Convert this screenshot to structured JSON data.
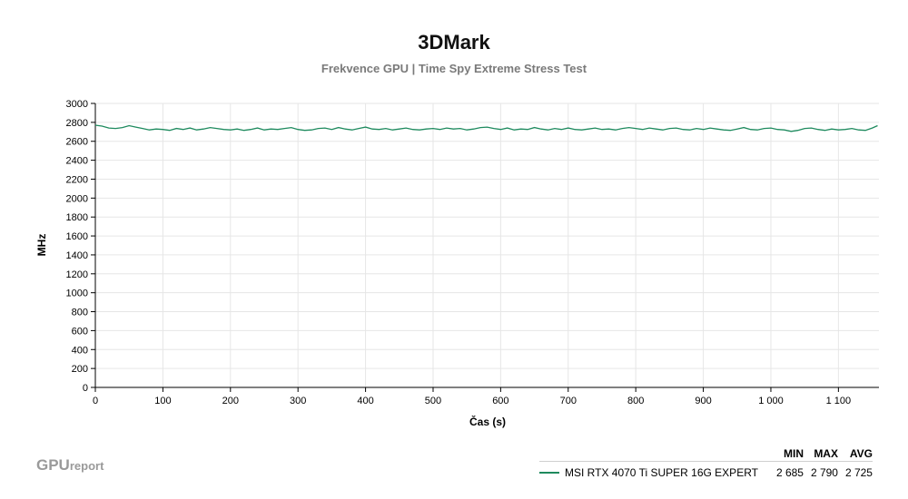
{
  "chart_data": {
    "type": "line",
    "title": "3DMark",
    "subtitle": "Frekvence GPU | Time Spy Extreme Stress Test",
    "xlabel": "Čas (s)",
    "ylabel": "MHz",
    "xlim": [
      0,
      1160
    ],
    "ylim": [
      0,
      3000
    ],
    "x_ticks": [
      0,
      100,
      200,
      300,
      400,
      500,
      600,
      700,
      800,
      900,
      1000,
      1100
    ],
    "x_tick_labels": [
      "0",
      "100",
      "200",
      "300",
      "400",
      "500",
      "600",
      "700",
      "800",
      "900",
      "1 000",
      "1 100"
    ],
    "y_ticks": [
      0,
      200,
      400,
      600,
      800,
      1000,
      1200,
      1400,
      1600,
      1800,
      2000,
      2200,
      2400,
      2600,
      2800,
      3000
    ],
    "grid": true,
    "legend_position": "bottom-right",
    "series": [
      {
        "name": "MSI RTX 4070 Ti SUPER 16G EXPERT",
        "color": "#1e8a5e",
        "x": [
          0,
          10,
          20,
          30,
          40,
          50,
          60,
          70,
          80,
          90,
          100,
          110,
          120,
          130,
          140,
          150,
          160,
          170,
          180,
          190,
          200,
          210,
          220,
          230,
          240,
          250,
          260,
          270,
          280,
          290,
          300,
          310,
          320,
          330,
          340,
          350,
          360,
          370,
          380,
          390,
          400,
          410,
          420,
          430,
          440,
          450,
          460,
          470,
          480,
          490,
          500,
          510,
          520,
          530,
          540,
          550,
          560,
          570,
          580,
          590,
          600,
          610,
          620,
          630,
          640,
          650,
          660,
          670,
          680,
          690,
          700,
          710,
          720,
          730,
          740,
          750,
          760,
          770,
          780,
          790,
          800,
          810,
          820,
          830,
          840,
          850,
          860,
          870,
          880,
          890,
          900,
          910,
          920,
          930,
          940,
          950,
          960,
          970,
          980,
          990,
          1000,
          1010,
          1020,
          1030,
          1040,
          1050,
          1060,
          1070,
          1080,
          1090,
          1100,
          1110,
          1120,
          1130,
          1140,
          1150,
          1158
        ],
        "y": [
          2770,
          2760,
          2740,
          2735,
          2745,
          2765,
          2750,
          2735,
          2720,
          2730,
          2725,
          2715,
          2735,
          2725,
          2740,
          2720,
          2730,
          2745,
          2735,
          2725,
          2720,
          2730,
          2715,
          2725,
          2740,
          2720,
          2730,
          2725,
          2735,
          2745,
          2725,
          2715,
          2720,
          2735,
          2740,
          2725,
          2745,
          2730,
          2720,
          2735,
          2750,
          2730,
          2725,
          2735,
          2720,
          2730,
          2740,
          2725,
          2720,
          2730,
          2735,
          2725,
          2740,
          2730,
          2735,
          2720,
          2730,
          2745,
          2750,
          2735,
          2725,
          2740,
          2720,
          2730,
          2725,
          2745,
          2730,
          2720,
          2735,
          2725,
          2740,
          2725,
          2720,
          2730,
          2740,
          2725,
          2730,
          2720,
          2735,
          2745,
          2735,
          2725,
          2740,
          2730,
          2720,
          2735,
          2740,
          2725,
          2720,
          2735,
          2725,
          2740,
          2730,
          2720,
          2715,
          2730,
          2745,
          2725,
          2720,
          2735,
          2740,
          2725,
          2720,
          2705,
          2715,
          2735,
          2740,
          2725,
          2715,
          2730,
          2720,
          2725,
          2735,
          2720,
          2715,
          2740,
          2765
        ]
      }
    ],
    "stats": {
      "headers": [
        "MIN",
        "MAX",
        "AVG"
      ],
      "rows": [
        {
          "name": "MSI RTX 4070 Ti SUPER 16G EXPERT",
          "min": "2 685",
          "max": "2 790",
          "avg": "2 725"
        }
      ]
    }
  },
  "brand": {
    "main": "GPU",
    "sub": "report"
  }
}
